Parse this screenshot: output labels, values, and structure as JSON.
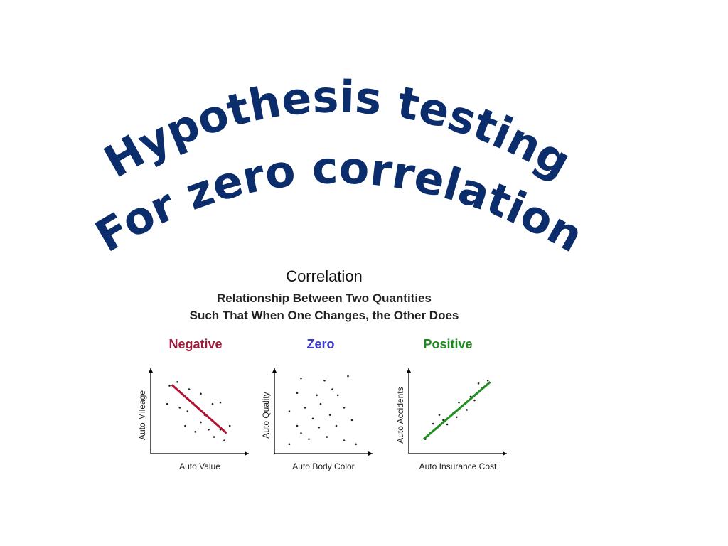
{
  "headline": {
    "line1": "Hypothesis testing",
    "line2": "For zero correlation",
    "color": "#0b2d6b"
  },
  "figure": {
    "title": "Correlation",
    "subtitle_line1": "Relationship Between Two Quantities",
    "subtitle_line2": "Such That When One Changes, the Other Does"
  },
  "chart_data": [
    {
      "type": "scatter",
      "title": "Negative",
      "title_color": "#a01a3a",
      "xlabel": "Auto Value",
      "ylabel": "Auto Mileage",
      "line_color": "#b3122e",
      "points": [
        [
          0.15,
          0.85
        ],
        [
          0.25,
          0.9
        ],
        [
          0.4,
          0.8
        ],
        [
          0.55,
          0.74
        ],
        [
          0.7,
          0.6
        ],
        [
          0.8,
          0.62
        ],
        [
          0.12,
          0.6
        ],
        [
          0.28,
          0.55
        ],
        [
          0.38,
          0.5
        ],
        [
          0.45,
          0.62
        ],
        [
          0.55,
          0.35
        ],
        [
          0.65,
          0.25
        ],
        [
          0.8,
          0.25
        ],
        [
          0.6,
          0.45
        ],
        [
          0.92,
          0.3
        ],
        [
          0.35,
          0.3
        ],
        [
          0.48,
          0.22
        ],
        [
          0.72,
          0.15
        ],
        [
          0.85,
          0.1
        ]
      ],
      "fit_line": [
        [
          0.18,
          0.86
        ],
        [
          0.88,
          0.2
        ]
      ]
    },
    {
      "type": "scatter",
      "title": "Zero",
      "title_color": "#3a3acd",
      "xlabel": "Auto Body Color",
      "ylabel": "Auto Quality",
      "points": [
        [
          0.25,
          0.95
        ],
        [
          0.55,
          0.92
        ],
        [
          0.85,
          0.98
        ],
        [
          0.2,
          0.75
        ],
        [
          0.45,
          0.72
        ],
        [
          0.65,
          0.8
        ],
        [
          0.72,
          0.72
        ],
        [
          0.5,
          0.6
        ],
        [
          0.3,
          0.55
        ],
        [
          0.8,
          0.55
        ],
        [
          0.1,
          0.5
        ],
        [
          0.62,
          0.45
        ],
        [
          0.4,
          0.4
        ],
        [
          0.9,
          0.38
        ],
        [
          0.2,
          0.3
        ],
        [
          0.48,
          0.28
        ],
        [
          0.7,
          0.3
        ],
        [
          0.35,
          0.12
        ],
        [
          0.58,
          0.15
        ],
        [
          0.8,
          0.1
        ],
        [
          0.95,
          0.05
        ],
        [
          0.1,
          0.05
        ],
        [
          0.25,
          0.2
        ]
      ]
    },
    {
      "type": "scatter",
      "title": "Positive",
      "title_color": "#1f8a1f",
      "xlabel": "Auto Insurance Cost",
      "ylabel": "Auto Accidents",
      "line_color": "#1f8f1f",
      "points": [
        [
          0.12,
          0.12
        ],
        [
          0.18,
          0.2
        ],
        [
          0.28,
          0.28
        ],
        [
          0.22,
          0.33
        ],
        [
          0.35,
          0.38
        ],
        [
          0.4,
          0.32
        ],
        [
          0.48,
          0.48
        ],
        [
          0.52,
          0.42
        ],
        [
          0.6,
          0.58
        ],
        [
          0.55,
          0.62
        ],
        [
          0.7,
          0.7
        ],
        [
          0.75,
          0.65
        ],
        [
          0.85,
          0.82
        ],
        [
          0.8,
          0.88
        ],
        [
          0.92,
          0.92
        ],
        [
          0.3,
          0.45
        ],
        [
          0.65,
          0.52
        ]
      ],
      "fit_line": [
        [
          0.1,
          0.12
        ],
        [
          0.95,
          0.9
        ]
      ]
    }
  ]
}
